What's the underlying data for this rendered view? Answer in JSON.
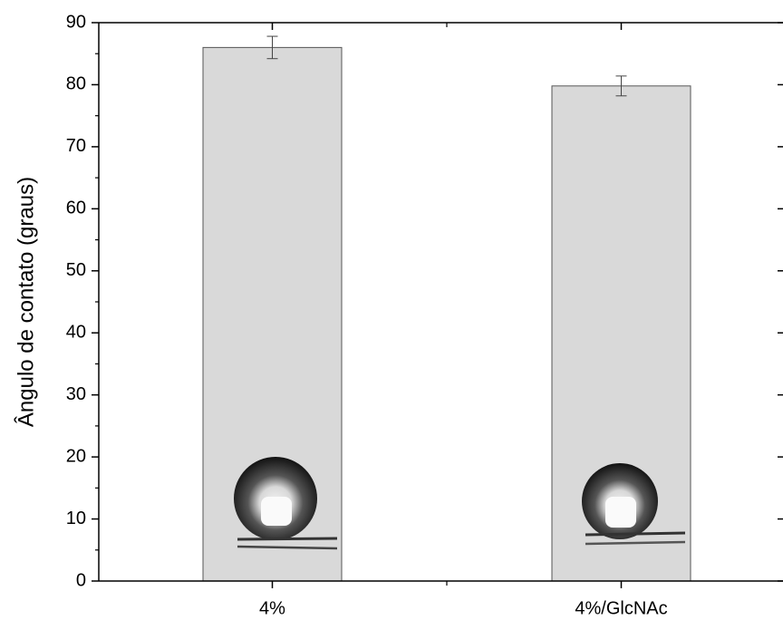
{
  "chart_data": {
    "type": "bar",
    "categories": [
      "4%",
      "4%/GlcNAc"
    ],
    "values": [
      86,
      79.8
    ],
    "errors": [
      1.8,
      1.6
    ],
    "color": "#d9d9d9",
    "ylabel": "Ângulo de contato (graus)",
    "ylim": [
      0,
      90
    ],
    "yticks": [
      0,
      10,
      20,
      30,
      40,
      50,
      60,
      70,
      80,
      90
    ]
  }
}
